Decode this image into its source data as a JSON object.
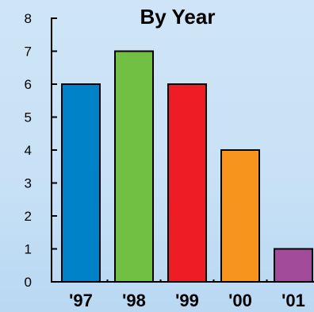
{
  "chart_data": {
    "type": "bar",
    "title": "By Year",
    "xlabel": "",
    "ylabel": "",
    "categories": [
      "'97",
      "'98",
      "'99",
      "'00",
      "'01"
    ],
    "values": [
      6,
      7,
      6,
      4,
      1
    ],
    "ylim": [
      0,
      8
    ],
    "yticks": [
      "0",
      "1",
      "2",
      "3",
      "4",
      "5",
      "6",
      "7",
      "8"
    ],
    "bar_colors": [
      "#0082c8",
      "#72c043",
      "#ee1c24",
      "#f7941d",
      "#a34b9b"
    ],
    "grid": false,
    "legend": "none"
  }
}
